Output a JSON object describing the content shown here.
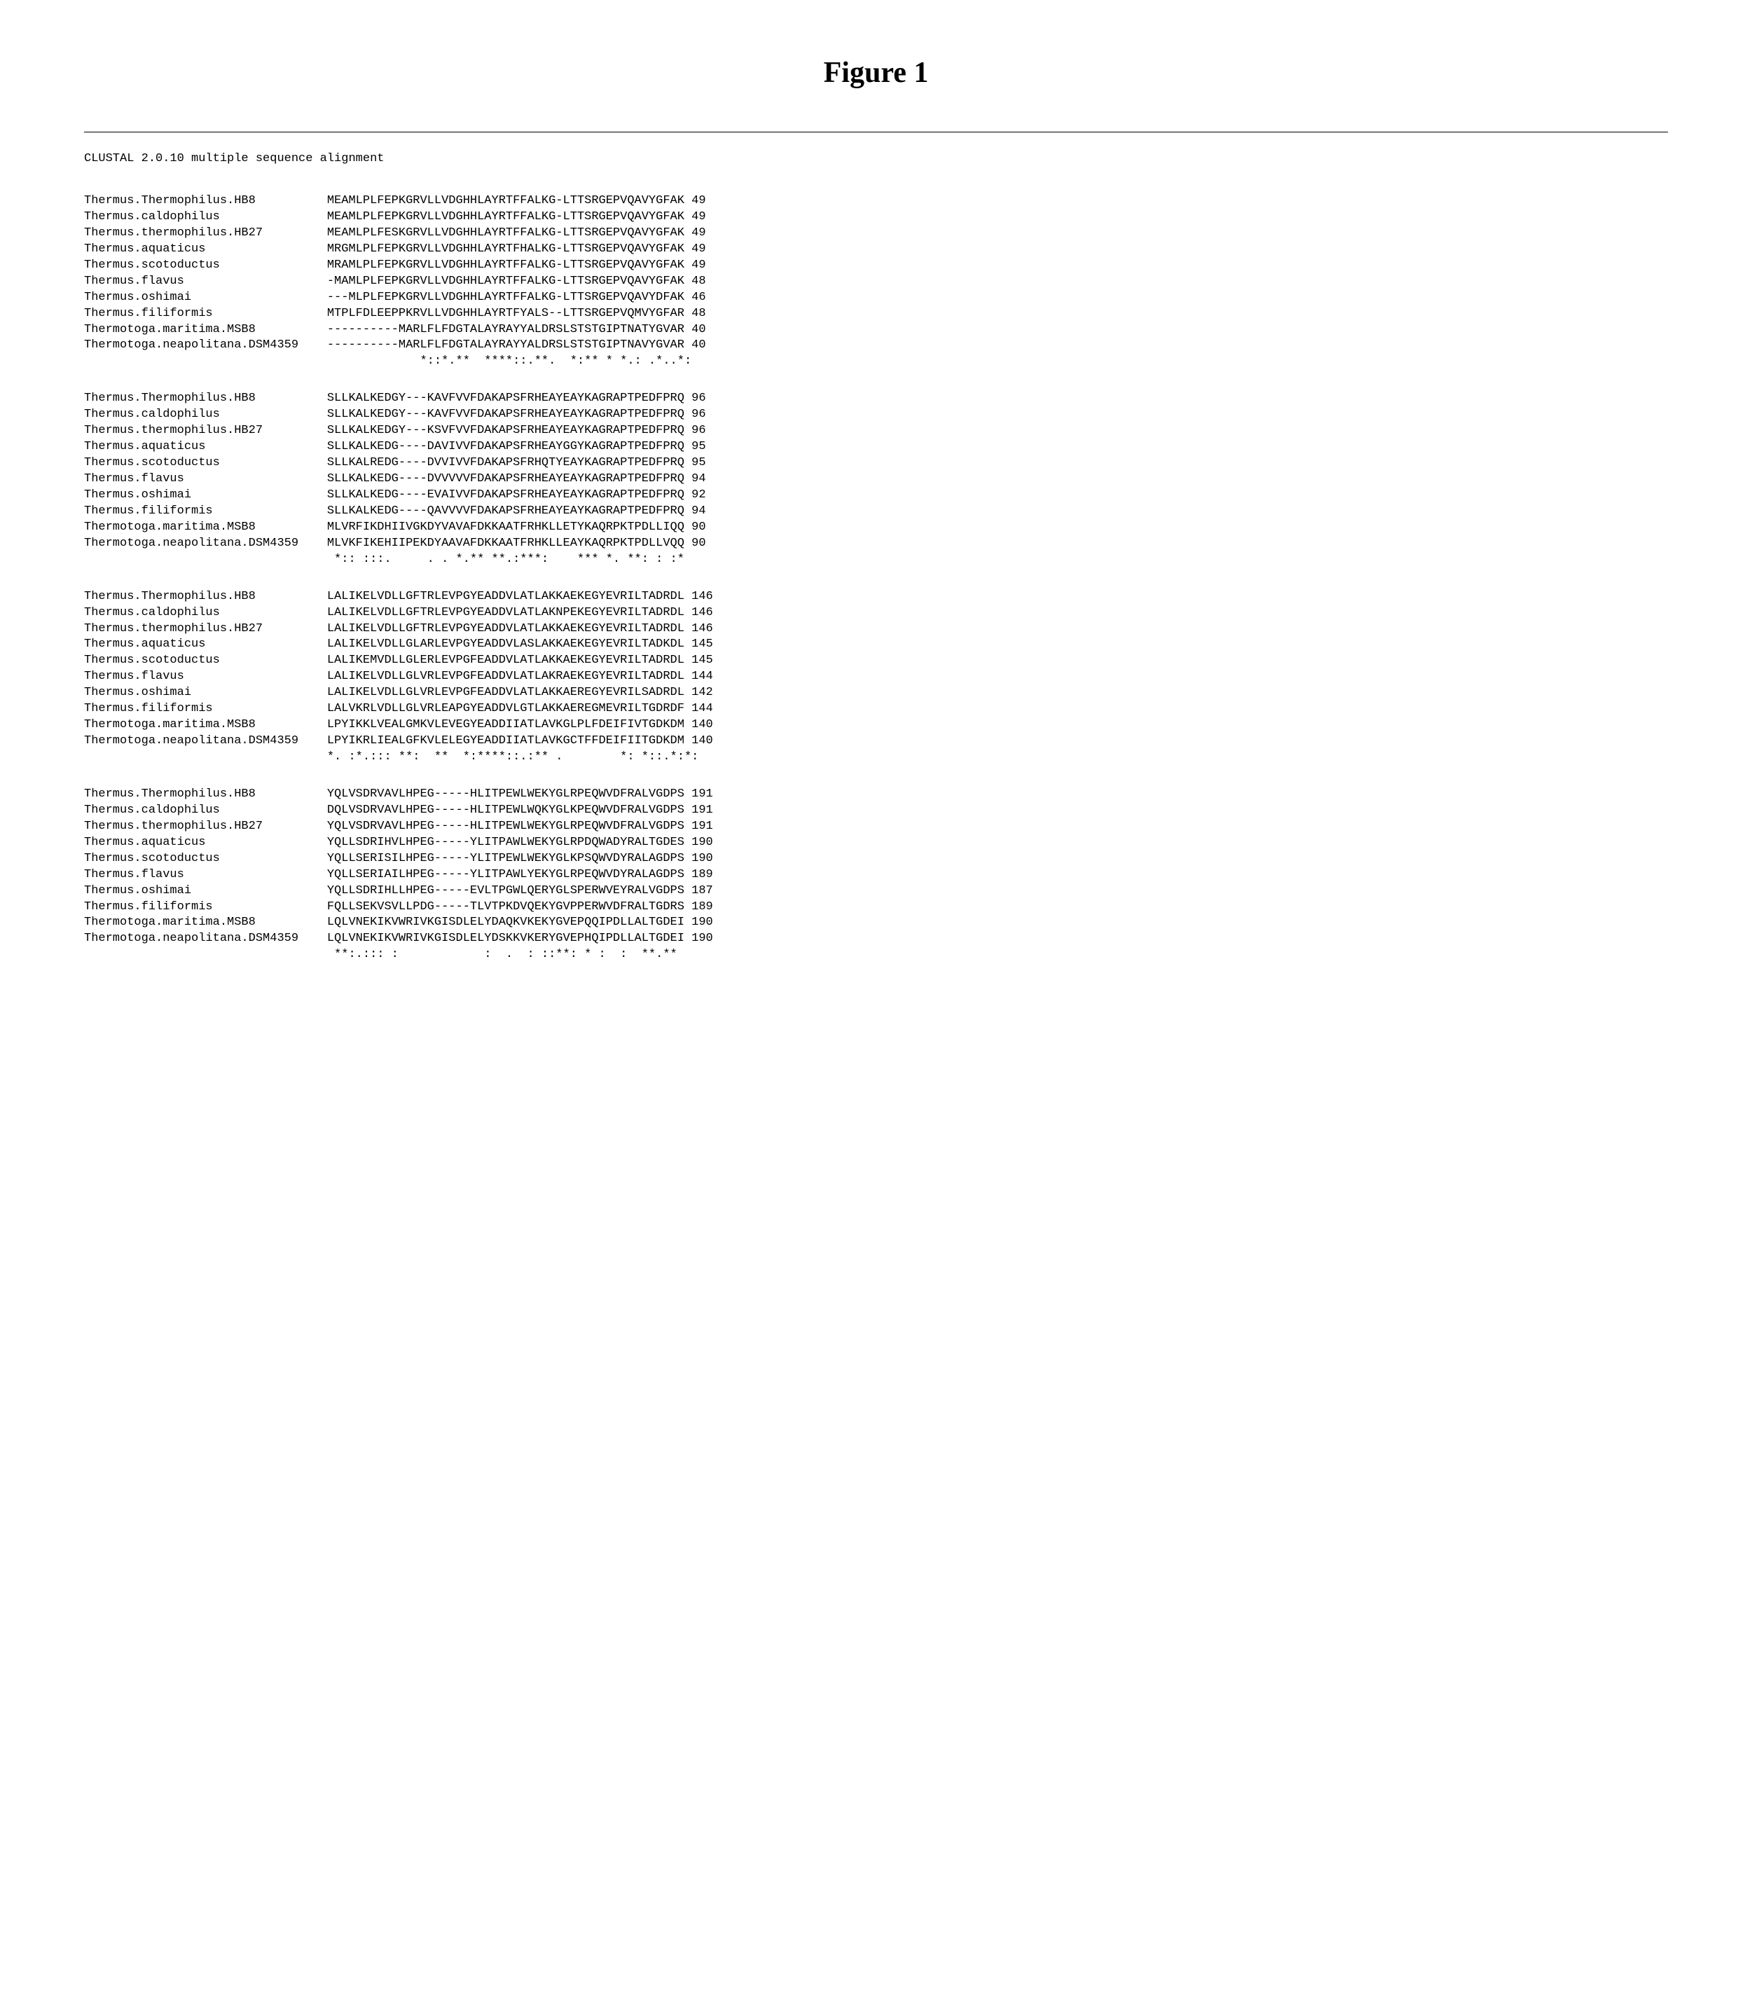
{
  "figure_title": "Figure 1",
  "subtitle": "CLUSTAL 2.0.10 multiple sequence alignment",
  "label_col_width": 34,
  "blocks": [
    {
      "rows": [
        {
          "label": "Thermus.Thermophilus.HB8",
          "seq": "MEAMLPLFEPKGRVLLVDGHHLAYRTFFALKG-LTTSRGEPVQAVYGFAK",
          "num": "49"
        },
        {
          "label": "Thermus.caldophilus",
          "seq": "MEAMLPLFEPKGRVLLVDGHHLAYRTFFALKG-LTTSRGEPVQAVYGFAK",
          "num": "49"
        },
        {
          "label": "Thermus.thermophilus.HB27",
          "seq": "MEAMLPLFESKGRVLLVDGHHLAYRTFFALKG-LTTSRGEPVQAVYGFAK",
          "num": "49"
        },
        {
          "label": "Thermus.aquaticus",
          "seq": "MRGMLPLFEPKGRVLLVDGHHLAYRTFHALKG-LTTSRGEPVQAVYGFAK",
          "num": "49"
        },
        {
          "label": "Thermus.scotoductus",
          "seq": "MRAMLPLFEPKGRVLLVDGHHLAYRTFFALKG-LTTSRGEPVQAVYGFAK",
          "num": "49"
        },
        {
          "label": "Thermus.flavus",
          "seq": "-MAMLPLFEPKGRVLLVDGHHLAYRTFFALKG-LTTSRGEPVQAVYGFAK",
          "num": "48"
        },
        {
          "label": "Thermus.oshimai",
          "seq": "---MLPLFEPKGRVLLVDGHHLAYRTFFALKG-LTTSRGEPVQAVYDFAK",
          "num": "46"
        },
        {
          "label": "Thermus.filiformis",
          "seq": "MTPLFDLEEPPKRVLLVDGHHLAYRTFYALS--LTTSRGEPVQMVYGFAR",
          "num": "48"
        },
        {
          "label": "Thermotoga.maritima.MSB8",
          "seq": "----------MARLFLFDGTALAYRAYYALDRSLSTSTGIPTNATYGVAR",
          "num": "40"
        },
        {
          "label": "Thermotoga.neapolitana.DSM4359",
          "seq": "----------MARLFLFDGTALAYRAYYALDRSLSTSTGIPTNAVYGVAR",
          "num": "40"
        }
      ],
      "cons": "             *::*.**  ****::.**.  *:** * *.: .*..*:"
    },
    {
      "rows": [
        {
          "label": "Thermus.Thermophilus.HB8",
          "seq": "SLLKALKEDGY---KAVFVVFDAKAPSFRHEAYEAYKAGRAPTPEDFPRQ",
          "num": "96"
        },
        {
          "label": "Thermus.caldophilus",
          "seq": "SLLKALKEDGY---KAVFVVFDAKAPSFRHEAYEAYKAGRAPTPEDFPRQ",
          "num": "96"
        },
        {
          "label": "Thermus.thermophilus.HB27",
          "seq": "SLLKALKEDGY---KSVFVVFDAKAPSFRHEAYEAYKAGRAPTPEDFPRQ",
          "num": "96"
        },
        {
          "label": "Thermus.aquaticus",
          "seq": "SLLKALKEDG----DAVIVVFDAKAPSFRHEAYGGYKAGRAPTPEDFPRQ",
          "num": "95"
        },
        {
          "label": "Thermus.scotoductus",
          "seq": "SLLKALREDG----DVVIVVFDAKAPSFRHQTYEAYKAGRAPTPEDFPRQ",
          "num": "95"
        },
        {
          "label": "Thermus.flavus",
          "seq": "SLLKALKEDG----DVVVVVFDAKAPSFRHEAYEAYKAGRAPTPEDFPRQ",
          "num": "94"
        },
        {
          "label": "Thermus.oshimai",
          "seq": "SLLKALKEDG----EVAIVVFDAKAPSFRHEAYEAYKAGRAPTPEDFPRQ",
          "num": "92"
        },
        {
          "label": "Thermus.filiformis",
          "seq": "SLLKALKEDG----QAVVVVFDAKAPSFRHEAYEAYKAGRAPTPEDFPRQ",
          "num": "94"
        },
        {
          "label": "Thermotoga.maritima.MSB8",
          "seq": "MLVRFIKDHIIVGKDYVAVAFDKKAATFRHKLLETYKAQRPKTPDLLIQQ",
          "num": "90"
        },
        {
          "label": "Thermotoga.neapolitana.DSM4359",
          "seq": "MLVKFIKEHIIPEKDYAAVAFDKKAATFRHKLLEAYKAQRPKTPDLLVQQ",
          "num": "90"
        }
      ],
      "cons": " *:: :::.     . . *.** **.:***:    *** *. **: : :*"
    },
    {
      "rows": [
        {
          "label": "Thermus.Thermophilus.HB8",
          "seq": "LALIKELVDLLGFTRLEVPGYEADDVLATLAKKAEKEGYEVRILTADRDL",
          "num": "146"
        },
        {
          "label": "Thermus.caldophilus",
          "seq": "LALIKELVDLLGFTRLEVPGYEADDVLATLAKNPEKEGYEVRILTADRDL",
          "num": "146"
        },
        {
          "label": "Thermus.thermophilus.HB27",
          "seq": "LALIKELVDLLGFTRLEVPGYEADDVLATLAKKAEKEGYEVRILTADRDL",
          "num": "146"
        },
        {
          "label": "Thermus.aquaticus",
          "seq": "LALIKELVDLLGLARLEVPGYEADDVLASLAKKAEKEGYEVRILTADKDL",
          "num": "145"
        },
        {
          "label": "Thermus.scotoductus",
          "seq": "LALIKEMVDLLGLERLEVPGFEADDVLATLAKKAEKEGYEVRILTADRDL",
          "num": "145"
        },
        {
          "label": "Thermus.flavus",
          "seq": "LALIKELVDLLGLVRLEVPGFEADDVLATLAKRAEKEGYEVRILTADRDL",
          "num": "144"
        },
        {
          "label": "Thermus.oshimai",
          "seq": "LALIKELVDLLGLVRLEVPGFEADDVLATLAKKAEREGYEVRILSADRDL",
          "num": "142"
        },
        {
          "label": "Thermus.filiformis",
          "seq": "LALVKRLVDLLGLVRLEAPGYEADDVLGTLAKKAEREGMEVRILTGDRDF",
          "num": "144"
        },
        {
          "label": "Thermotoga.maritima.MSB8",
          "seq": "LPYIKKLVEALGMKVLEVEGYEADDIIATLAVKGLPLFDEIFIVTGDKDM",
          "num": "140"
        },
        {
          "label": "Thermotoga.neapolitana.DSM4359",
          "seq": "LPYIKRLIEALGFKVLELEGYEADDIIATLAVKGCTFFDEIFIITGDKDM",
          "num": "140"
        }
      ],
      "cons": "*. :*.::: **:  **  *:****::.:** .        *: *::.*:*:"
    },
    {
      "rows": [
        {
          "label": "Thermus.Thermophilus.HB8",
          "seq": "YQLVSDRVAVLHPEG-----HLITPEWLWEKYGLRPEQWVDFRALVGDPS",
          "num": "191"
        },
        {
          "label": "Thermus.caldophilus",
          "seq": "DQLVSDRVAVLHPEG-----HLITPEWLWQKYGLKPEQWVDFRALVGDPS",
          "num": "191"
        },
        {
          "label": "Thermus.thermophilus.HB27",
          "seq": "YQLVSDRVAVLHPEG-----HLITPEWLWEKYGLRPEQWVDFRALVGDPS",
          "num": "191"
        },
        {
          "label": "Thermus.aquaticus",
          "seq": "YQLLSDRIHVLHPEG-----YLITPAWLWEKYGLRPDQWADYRALTGDES",
          "num": "190"
        },
        {
          "label": "Thermus.scotoductus",
          "seq": "YQLLSERISILHPEG-----YLITPEWLWEKYGLKPSQWVDYRALAGDPS",
          "num": "190"
        },
        {
          "label": "Thermus.flavus",
          "seq": "YQLLSERIAILHPEG-----YLITPAWLYEKYGLRPEQWVDYRALAGDPS",
          "num": "189"
        },
        {
          "label": "Thermus.oshimai",
          "seq": "YQLLSDRIHLLHPEG-----EVLTPGWLQERYGLSPERWVEYRALVGDPS",
          "num": "187"
        },
        {
          "label": "Thermus.filiformis",
          "seq": "FQLLSEKVSVLLPDG-----TLVTPKDVQEKYGVPPERWVDFRALTGDRS",
          "num": "189"
        },
        {
          "label": "Thermotoga.maritima.MSB8",
          "seq": "LQLVNEKIKVWRIVKGISDLELYDAQKVKEKYGVEPQQIPDLLALTGDEI",
          "num": "190"
        },
        {
          "label": "Thermotoga.neapolitana.DSM4359",
          "seq": "LQLVNEKIKVWRIVKGISDLELYDSKKVKERYGVEPHQIPDLLALTGDEI",
          "num": "190"
        }
      ],
      "cons": " **:.::: :            :  .  : ::**: * :  :  **.**  "
    }
  ]
}
